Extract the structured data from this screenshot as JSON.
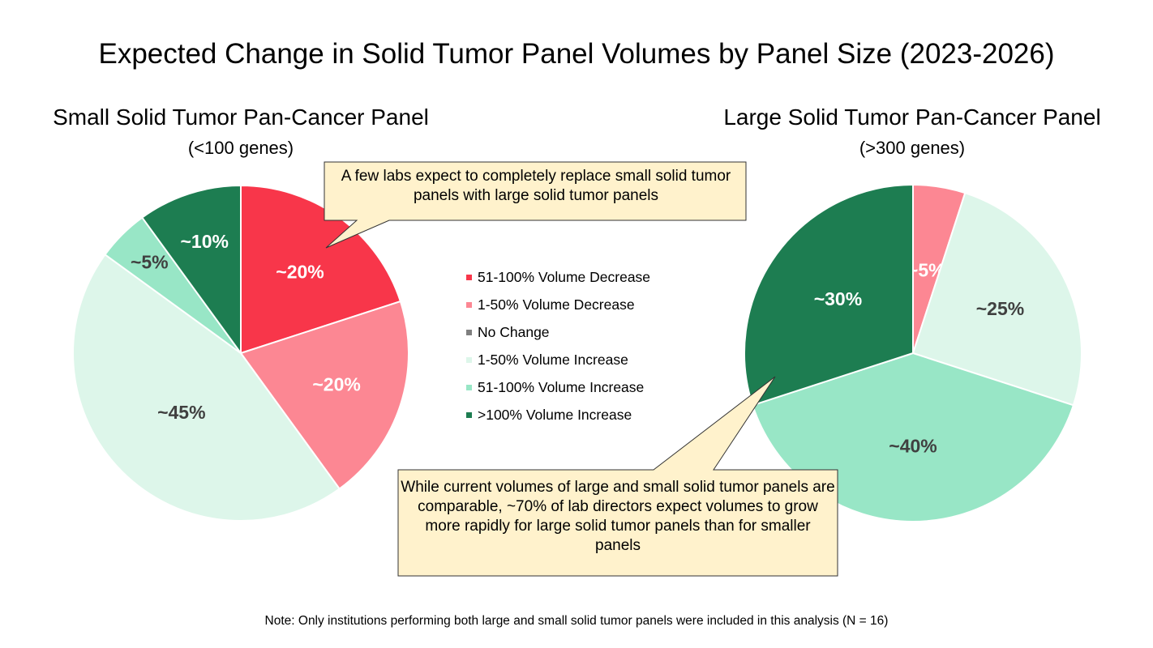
{
  "title": "Expected Change in Solid Tumor Panel Volumes by Panel Size (2023-2026)",
  "colors": {
    "51-100% Volume Decrease": "#F8364A",
    "1-50% Volume Decrease": "#FC8793",
    "No Change": "#7F7F7F",
    "1-50% Volume Increase": "#DDF6EA",
    ">100% Volume Increase": "#1D7D51",
    "51-100% Volume Increase": "#98E6C6",
    "callout_fill": "#FFF2CC",
    "callout_border": "#333333"
  },
  "chart_data": [
    {
      "type": "pie",
      "title": "Small Solid Tumor Pan-Cancer Panel",
      "subtitle": "(<100 genes)",
      "slices": [
        {
          "category": "51-100% Volume Decrease",
          "label": "~20%",
          "value": 20
        },
        {
          "category": "1-50% Volume Decrease",
          "label": "~20%",
          "value": 20
        },
        {
          "category": "No Change",
          "label": "",
          "value": 0
        },
        {
          "category": "1-50% Volume Increase",
          "label": "~45%",
          "value": 45
        },
        {
          "category": "51-100% Volume Increase",
          "label": "~5%",
          "value": 5
        },
        {
          "category": ">100% Volume Increase",
          "label": "~10%",
          "value": 10
        }
      ]
    },
    {
      "type": "pie",
      "title": "Large Solid Tumor Pan-Cancer Panel",
      "subtitle": "(>300 genes)",
      "slices": [
        {
          "category": "51-100% Volume Decrease",
          "label": "",
          "value": 0
        },
        {
          "category": "1-50% Volume Decrease",
          "label": "~5%",
          "value": 5
        },
        {
          "category": "No Change",
          "label": "",
          "value": 0
        },
        {
          "category": "1-50% Volume Increase",
          "label": "~25%",
          "value": 25
        },
        {
          "category": "51-100% Volume Increase",
          "label": "~40%",
          "value": 40
        },
        {
          "category": ">100% Volume Increase",
          "label": "~30%",
          "value": 30
        }
      ]
    }
  ],
  "legend": [
    "51-100% Volume Decrease",
    "1-50% Volume Decrease",
    "No Change",
    "1-50% Volume Increase",
    "51-100% Volume Increase",
    ">100% Volume Increase"
  ],
  "callouts": {
    "top": "A few labs expect to completely replace small solid tumor panels with large solid tumor panels",
    "bottom": "While current volumes of large and small solid tumor panels are comparable, ~70% of lab directors expect volumes to grow more rapidly for large solid tumor panels than for smaller panels"
  },
  "note": "Note: Only institutions performing both large and small solid tumor panels were included in this analysis (N = 16)"
}
